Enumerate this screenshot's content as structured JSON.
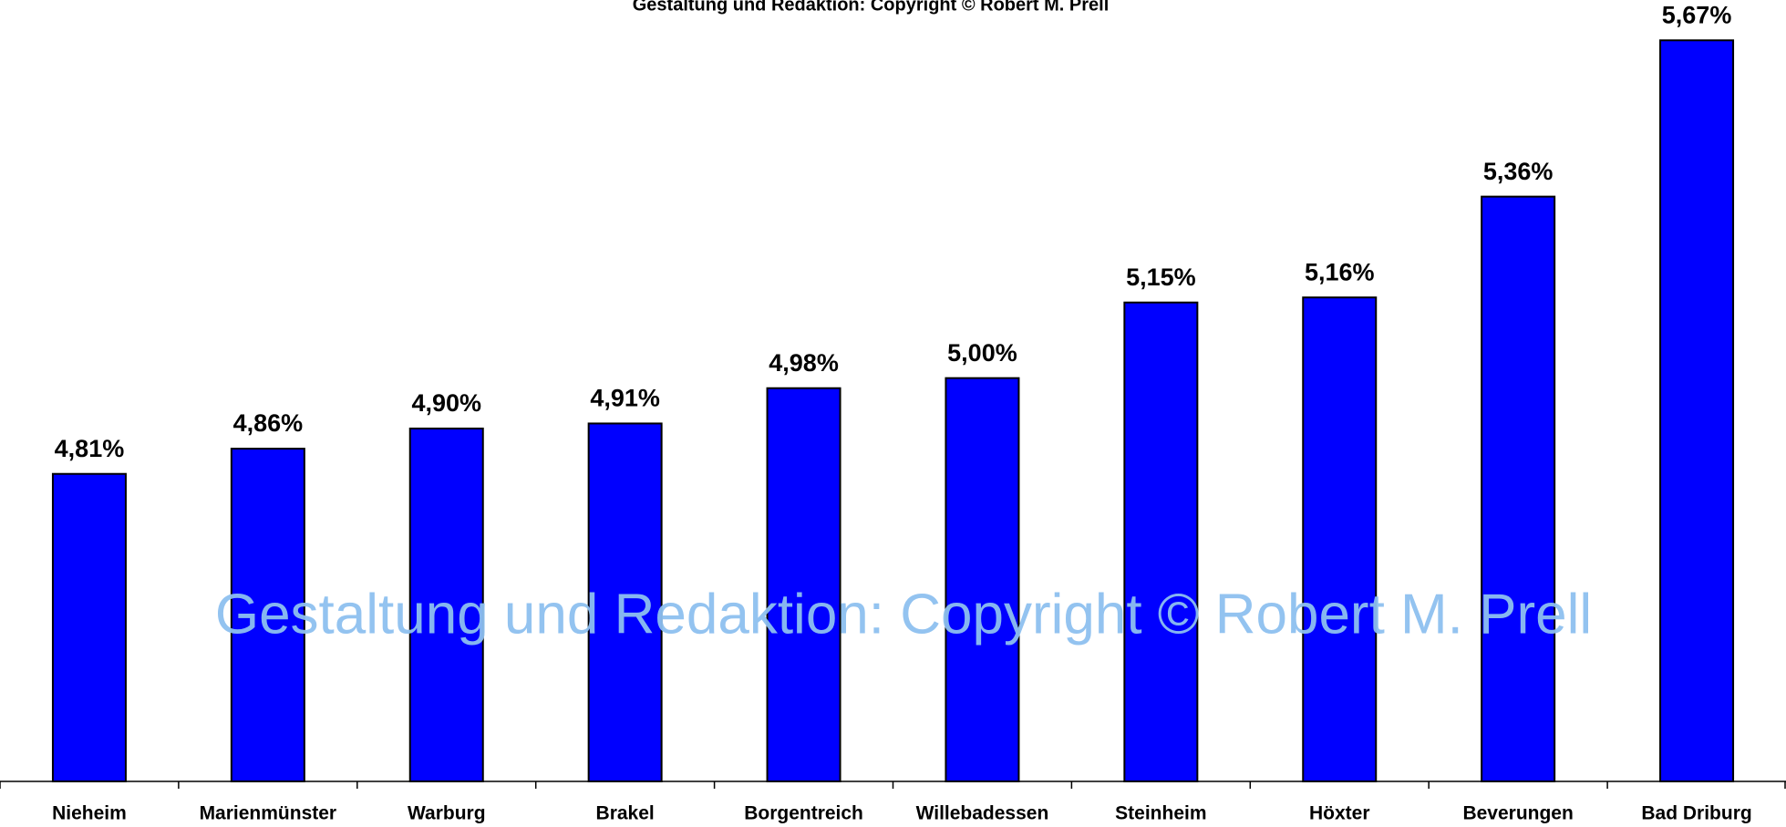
{
  "chart_data": {
    "type": "bar",
    "title": "Gestaltung und Redaktion: Copyright © Robert M. Prell",
    "watermark": "Gestaltung und Redaktion: Copyright © Robert M. Prell",
    "categories": [
      "Nieheim",
      "Marienmünster",
      "Warburg",
      "Brakel",
      "Borgentreich",
      "Willebadessen",
      "Steinheim",
      "Höxter",
      "Beverungen",
      "Bad Driburg"
    ],
    "values": [
      4.81,
      4.86,
      4.9,
      4.91,
      4.98,
      5.0,
      5.15,
      5.16,
      5.36,
      5.67
    ],
    "value_labels": [
      "4,81%",
      "4,86%",
      "4,90%",
      "4,91%",
      "4,98%",
      "5,00%",
      "5,15%",
      "5,16%",
      "5,36%",
      "5,67%"
    ],
    "color": "#0000ff",
    "ylim": [
      4.2,
      5.75
    ]
  }
}
